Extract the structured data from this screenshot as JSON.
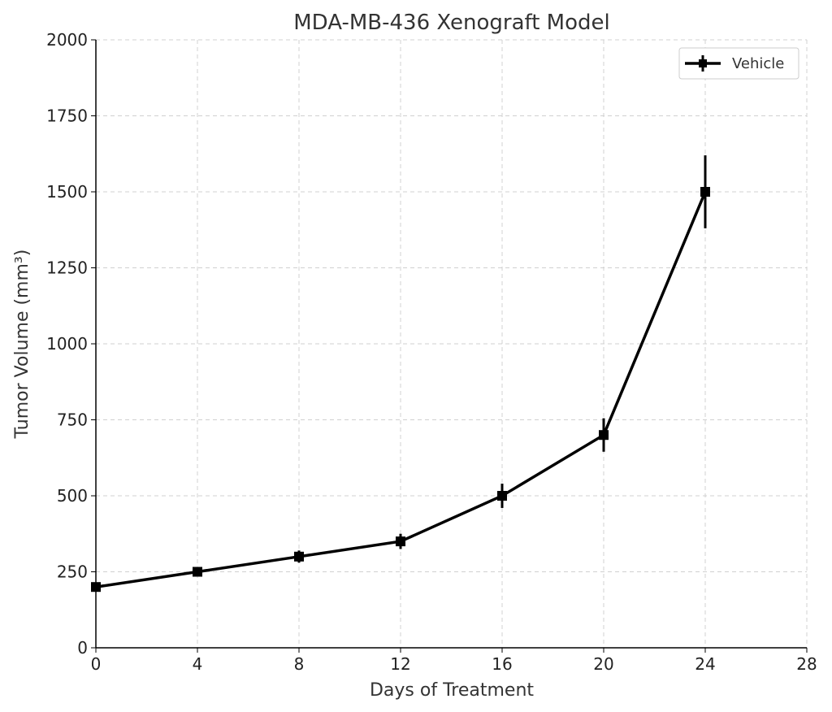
{
  "chart_data": {
    "type": "line",
    "title": "MDA-MB-436 Xenograft Model",
    "xlabel": "Days of Treatment",
    "ylabel": "Tumor Volume (mm³)",
    "xlim": [
      0,
      28
    ],
    "ylim": [
      0,
      2000
    ],
    "xticks": [
      0,
      4,
      8,
      12,
      16,
      20,
      24,
      28
    ],
    "yticks": [
      0,
      250,
      500,
      750,
      1000,
      1250,
      1500,
      1750,
      2000
    ],
    "grid": true,
    "legend_position": "top-right",
    "series": [
      {
        "name": "Vehicle",
        "color": "#000000",
        "marker": "square",
        "x": [
          0,
          4,
          8,
          12,
          16,
          20,
          24
        ],
        "y": [
          200,
          250,
          300,
          350,
          500,
          700,
          1500
        ],
        "error": [
          10,
          15,
          20,
          25,
          40,
          55,
          120
        ]
      }
    ]
  }
}
